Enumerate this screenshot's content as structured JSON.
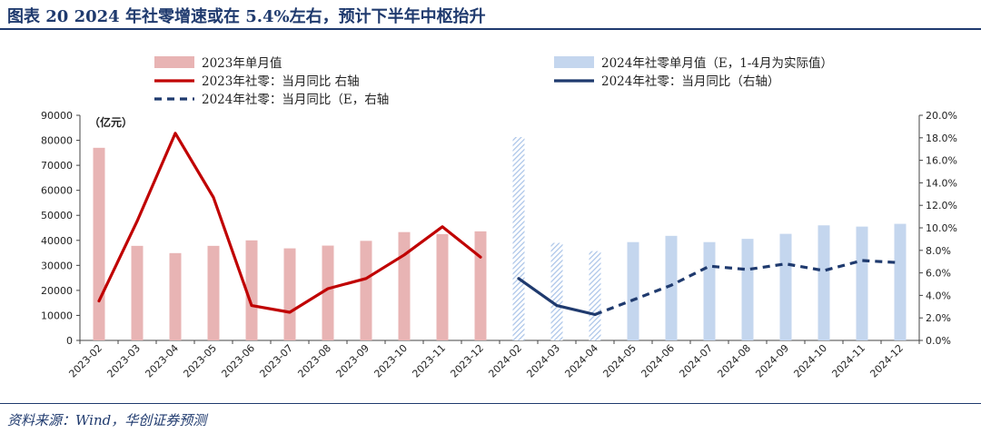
{
  "header": {
    "title": "图表 20   2024 年社零增速或在 5.4%左右，预计下半年中枢抬升"
  },
  "footer": {
    "source": "资料来源：Wind，华创证券预测"
  },
  "chart_data": {
    "type": "bar+line",
    "unit_label": "（亿元）",
    "categories": [
      "2023-02",
      "2023-03",
      "2023-04",
      "2023-05",
      "2023-06",
      "2023-07",
      "2023-08",
      "2023-09",
      "2023-10",
      "2023-11",
      "2023-12",
      "2024-02",
      "2024-03",
      "2024-04",
      "2024-05",
      "2024-06",
      "2024-07",
      "2024-08",
      "2024-09",
      "2024-10",
      "2024-11",
      "2024-12"
    ],
    "y_left": {
      "min": 0,
      "max": 90000,
      "step": 10000,
      "tick_labels": [
        "0",
        "10000",
        "20000",
        "30000",
        "40000",
        "50000",
        "60000",
        "70000",
        "80000",
        "90000"
      ]
    },
    "y_right": {
      "min": 0,
      "max": 20,
      "step": 2,
      "tick_labels": [
        "0.0%",
        "2.0%",
        "4.0%",
        "6.0%",
        "8.0%",
        "10.0%",
        "12.0%",
        "14.0%",
        "16.0%",
        "18.0%",
        "20.0%"
      ]
    },
    "series": [
      {
        "name": "2023年单月值",
        "kind": "bar",
        "color": "#e8b4b4",
        "values": [
          77000,
          37800,
          34900,
          37800,
          40000,
          36800,
          37900,
          39800,
          43300,
          42500,
          43600,
          null,
          null,
          null,
          null,
          null,
          null,
          null,
          null,
          null,
          null,
          null
        ]
      },
      {
        "name": "2024年社零单月值（E，1-4月为实际值）",
        "kind": "bar",
        "color": "#c4d6ee",
        "hatched_actual": true,
        "values": [
          null,
          null,
          null,
          null,
          null,
          null,
          null,
          null,
          null,
          null,
          null,
          81300,
          39000,
          35700,
          39300,
          41800,
          39300,
          40600,
          42600,
          46000,
          45500,
          46600
        ]
      },
      {
        "name": "2023年社零：当月同比 右轴",
        "kind": "line",
        "color": "#c00000",
        "axis": "right",
        "values": [
          3.5,
          10.6,
          18.4,
          12.7,
          3.1,
          2.5,
          4.6,
          5.5,
          7.6,
          10.1,
          7.4,
          null,
          null,
          null,
          null,
          null,
          null,
          null,
          null,
          null,
          null,
          null
        ]
      },
      {
        "name": "2024年社零：当月同比（右轴）",
        "kind": "line",
        "color": "#1f3a6e",
        "axis": "right",
        "values": [
          null,
          null,
          null,
          null,
          null,
          null,
          null,
          null,
          null,
          null,
          null,
          5.5,
          3.1,
          2.3,
          null,
          null,
          null,
          null,
          null,
          null,
          null,
          null
        ]
      },
      {
        "name": "2024年社零：当月同比（E，右轴",
        "kind": "line-dashed",
        "color": "#1f3a6e",
        "axis": "right",
        "values": [
          null,
          null,
          null,
          null,
          null,
          null,
          null,
          null,
          null,
          null,
          null,
          null,
          null,
          2.3,
          3.6,
          4.9,
          6.6,
          6.3,
          6.8,
          6.2,
          7.1,
          6.9
        ]
      }
    ],
    "legend_position": "top",
    "grid": false
  }
}
